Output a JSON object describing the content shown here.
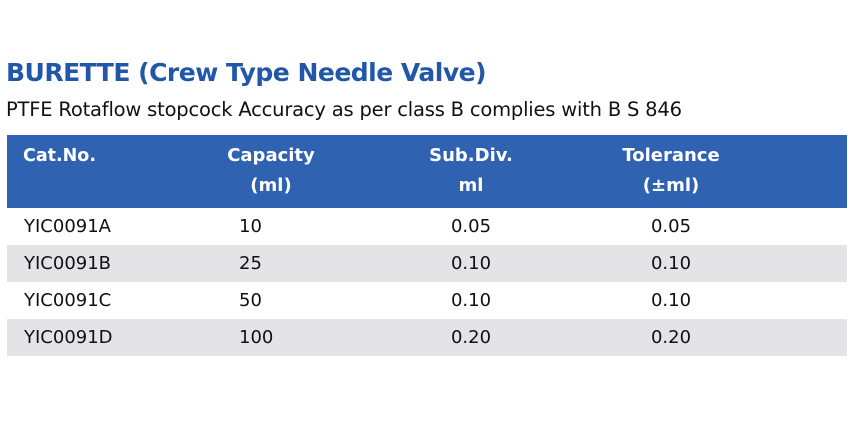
{
  "product": {
    "title": "BURETTE (Crew Type Needle Valve)",
    "description": "PTFE Rotaflow stopcock Accuracy as per class B complies with B S 846"
  },
  "table": {
    "headers": [
      {
        "line1": "Cat.No.",
        "line2": ""
      },
      {
        "line1": "Capacity",
        "line2": "(ml)"
      },
      {
        "line1": "Sub.Div.",
        "line2": "ml"
      },
      {
        "line1": "Tolerance",
        "line2": "(±ml)"
      }
    ],
    "rows": [
      {
        "cat_no": "YIC0091A",
        "capacity": "10",
        "sub_div": "0.05",
        "tolerance": "0.05"
      },
      {
        "cat_no": "YIC0091B",
        "capacity": "25",
        "sub_div": "0.10",
        "tolerance": "0.10"
      },
      {
        "cat_no": "YIC0091C",
        "capacity": "50",
        "sub_div": "0.10",
        "tolerance": "0.10"
      },
      {
        "cat_no": "YIC0091D",
        "capacity": "100",
        "sub_div": "0.20",
        "tolerance": "0.20"
      }
    ]
  },
  "colors": {
    "title": "#2157a8",
    "header_background": "#2f62b1",
    "header_text": "#ffffff",
    "striped_row": "#e4e4e6"
  }
}
